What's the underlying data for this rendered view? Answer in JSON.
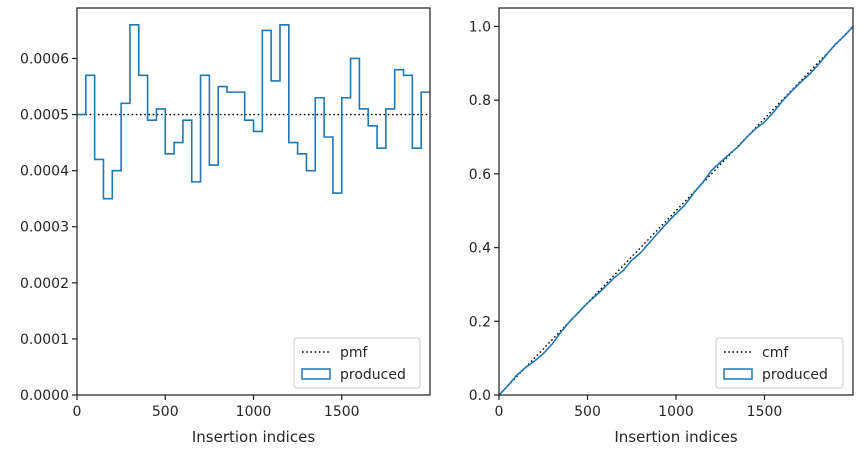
{
  "chart_data": [
    {
      "type": "step",
      "xlabel": "Insertion indices",
      "ylabel": "",
      "xlim": [
        0,
        2000
      ],
      "ylim": [
        0,
        0.00069
      ],
      "xticks": [
        0,
        500,
        1000,
        1500
      ],
      "xtick_labels": [
        "0",
        "500",
        "1000",
        "1500"
      ],
      "yticks": [
        0,
        0.0001,
        0.0002,
        0.0003,
        0.0004,
        0.0005,
        0.0006
      ],
      "ytick_labels": [
        "0.0000",
        "0.0001",
        "0.0002",
        "0.0003",
        "0.0004",
        "0.0005",
        "0.0006"
      ],
      "grid": false,
      "legend_position": "lower right",
      "bin_width": 50,
      "series": [
        {
          "name": "pmf",
          "style": "dotted",
          "color": "#000000",
          "x": [
            0,
            2000
          ],
          "values": [
            0.0005,
            0.0005
          ]
        },
        {
          "name": "produced",
          "style": "step-outline",
          "color": "#1f77b4",
          "bin_starts": [
            0,
            50,
            100,
            150,
            200,
            250,
            300,
            350,
            400,
            450,
            500,
            550,
            600,
            650,
            700,
            750,
            800,
            850,
            900,
            950,
            1000,
            1050,
            1100,
            1150,
            1200,
            1250,
            1300,
            1350,
            1400,
            1450,
            1500,
            1550,
            1600,
            1650,
            1700,
            1750,
            1800,
            1850,
            1900,
            1950
          ],
          "values": [
            0.0005,
            0.00057,
            0.00042,
            0.00035,
            0.0004,
            0.00052,
            0.00066,
            0.00057,
            0.00049,
            0.00051,
            0.00043,
            0.00045,
            0.00049,
            0.00038,
            0.00057,
            0.00041,
            0.00055,
            0.00054,
            0.00054,
            0.00049,
            0.00047,
            0.00065,
            0.00056,
            0.00066,
            0.00045,
            0.00043,
            0.0004,
            0.00053,
            0.00046,
            0.00036,
            0.00053,
            0.0006,
            0.00051,
            0.00048,
            0.00044,
            0.00051,
            0.00058,
            0.00057,
            0.00044,
            0.00054
          ]
        }
      ]
    },
    {
      "type": "line",
      "xlabel": "Insertion indices",
      "ylabel": "",
      "xlim": [
        0,
        2000
      ],
      "ylim": [
        0,
        1.05
      ],
      "xticks": [
        0,
        500,
        1000,
        1500
      ],
      "xtick_labels": [
        "0",
        "500",
        "1000",
        "1500"
      ],
      "yticks": [
        0,
        0.2,
        0.4,
        0.6,
        0.8,
        1.0
      ],
      "ytick_labels": [
        "0.0",
        "0.2",
        "0.4",
        "0.6",
        "0.8",
        "1.0"
      ],
      "grid": false,
      "legend_position": "lower right",
      "series": [
        {
          "name": "cmf",
          "style": "dotted",
          "color": "#000000",
          "x": [
            0,
            2000
          ],
          "values": [
            0,
            1
          ]
        },
        {
          "name": "produced",
          "style": "solid",
          "color": "#1f77b4",
          "x": [
            0,
            50,
            100,
            150,
            200,
            250,
            300,
            350,
            400,
            450,
            500,
            550,
            600,
            650,
            700,
            750,
            800,
            850,
            900,
            950,
            1000,
            1050,
            1100,
            1150,
            1200,
            1250,
            1300,
            1350,
            1400,
            1450,
            1500,
            1550,
            1600,
            1650,
            1700,
            1750,
            1800,
            1850,
            1900,
            1950,
            2000
          ],
          "values": [
            0,
            0.025,
            0.0535,
            0.0745,
            0.092,
            0.112,
            0.138,
            0.171,
            0.1995,
            0.224,
            0.2495,
            0.271,
            0.2935,
            0.318,
            0.337,
            0.3655,
            0.386,
            0.4135,
            0.4405,
            0.4675,
            0.492,
            0.5155,
            0.548,
            0.576,
            0.609,
            0.6315,
            0.653,
            0.673,
            0.6995,
            0.7225,
            0.7405,
            0.767,
            0.797,
            0.8225,
            0.8465,
            0.8685,
            0.894,
            0.923,
            0.9515,
            0.9735,
            1.0
          ]
        }
      ]
    }
  ]
}
